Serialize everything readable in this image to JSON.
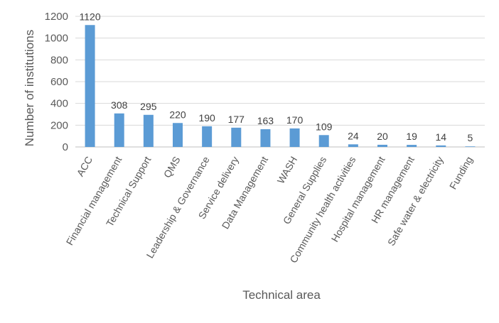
{
  "chart_data": {
    "type": "bar",
    "xlabel": "Technical area",
    "ylabel": "Number of institutions",
    "ylim": [
      0,
      1200
    ],
    "yticks": [
      0,
      200,
      400,
      600,
      800,
      1000,
      1200
    ],
    "grid": true,
    "bar_color": "#5b9bd5",
    "categories": [
      "ACC",
      "Financial management",
      "Technical Support",
      "QMS",
      "Leadership & Governance",
      "Service delivery",
      "Data Management",
      "WASH",
      "General Supplies",
      "Community health activities",
      "Hospital management",
      "HR management",
      "Safe water & electricity",
      "Funding"
    ],
    "values": [
      1120,
      308,
      295,
      220,
      190,
      177,
      163,
      170,
      109,
      24,
      20,
      19,
      14,
      5
    ]
  }
}
